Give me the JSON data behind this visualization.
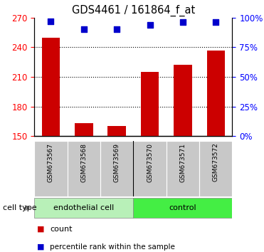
{
  "title": "GDS4461 / 161864_f_at",
  "samples": [
    "GSM673567",
    "GSM673568",
    "GSM673569",
    "GSM673570",
    "GSM673571",
    "GSM673572"
  ],
  "counts": [
    250,
    163,
    160,
    215,
    222,
    237
  ],
  "percentiles": [
    97,
    90,
    90,
    94,
    96,
    96
  ],
  "ylim_left": [
    150,
    270
  ],
  "ylim_right": [
    0,
    100
  ],
  "yticks_left": [
    150,
    180,
    210,
    240,
    270
  ],
  "yticks_right": [
    0,
    25,
    50,
    75,
    100
  ],
  "gridlines": [
    180,
    210,
    240
  ],
  "bar_color": "#cc0000",
  "dot_color": "#0000cc",
  "cell_types": [
    "endothelial cell",
    "control"
  ],
  "cell_type_colors": [
    "#b8f0b8",
    "#44ee44"
  ],
  "sample_box_color": "#c8c8c8",
  "bar_width": 0.55
}
